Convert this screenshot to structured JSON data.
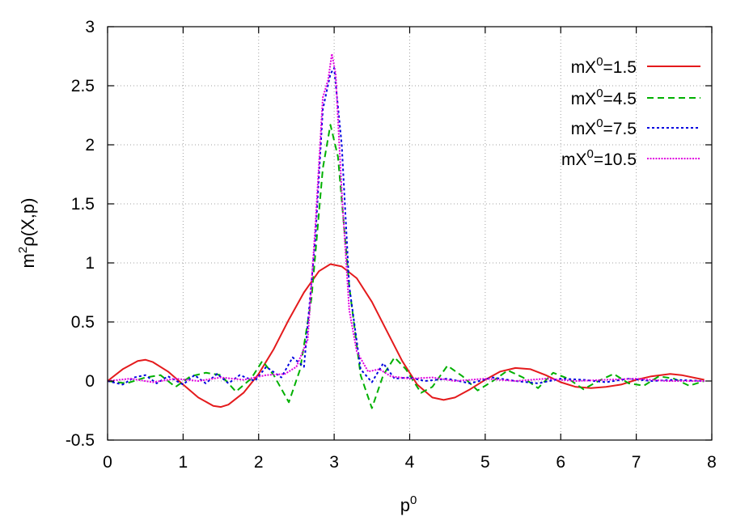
{
  "chart_data": {
    "type": "line",
    "xlabel": "p",
    "xlabel_sup": "0",
    "ylabel_pre": "m",
    "ylabel_sup": "2",
    "ylabel_post": "ρ(X,p)",
    "xlim": [
      0,
      8
    ],
    "ylim": [
      -0.5,
      3
    ],
    "xticks": [
      "0",
      "1",
      "2",
      "3",
      "4",
      "5",
      "6",
      "7",
      "8"
    ],
    "yticks": [
      "-0.5",
      "0",
      "0.5",
      "1",
      "1.5",
      "2",
      "2.5",
      "3"
    ],
    "grid": true,
    "legend_position": "top-right",
    "series": [
      {
        "name": "mX0=1.5",
        "label_pre": "mX",
        "label_sup": "0",
        "label_post": "=1.5",
        "color": "#e41a1c",
        "dash": "",
        "x": [
          0,
          0.2,
          0.4,
          0.5,
          0.6,
          0.8,
          1.0,
          1.2,
          1.4,
          1.5,
          1.6,
          1.8,
          2.0,
          2.2,
          2.4,
          2.6,
          2.8,
          2.95,
          3.1,
          3.3,
          3.5,
          3.7,
          3.9,
          4.1,
          4.3,
          4.45,
          4.6,
          4.8,
          5.0,
          5.2,
          5.4,
          5.6,
          5.8,
          6.0,
          6.2,
          6.4,
          6.6,
          6.8,
          7.0,
          7.2,
          7.45,
          7.6,
          7.9
        ],
        "y": [
          0,
          0.1,
          0.17,
          0.18,
          0.16,
          0.08,
          -0.03,
          -0.14,
          -0.21,
          -0.22,
          -0.2,
          -0.1,
          0.06,
          0.27,
          0.52,
          0.75,
          0.93,
          0.99,
          0.97,
          0.87,
          0.67,
          0.42,
          0.17,
          -0.03,
          -0.14,
          -0.16,
          -0.14,
          -0.07,
          0.01,
          0.08,
          0.11,
          0.1,
          0.05,
          -0.01,
          -0.05,
          -0.06,
          -0.05,
          -0.03,
          0.01,
          0.04,
          0.06,
          0.05,
          0.01
        ]
      },
      {
        "name": "mX0=4.5",
        "label_pre": "mX",
        "label_sup": "0",
        "label_post": "=4.5",
        "color": "#00b000",
        "dash": "8,5",
        "x": [
          0,
          0.25,
          0.5,
          0.7,
          0.9,
          1.1,
          1.3,
          1.5,
          1.7,
          1.9,
          2.05,
          2.2,
          2.4,
          2.55,
          2.7,
          2.85,
          2.95,
          3.05,
          3.2,
          3.35,
          3.5,
          3.65,
          3.8,
          3.95,
          4.15,
          4.3,
          4.5,
          4.7,
          4.9,
          5.1,
          5.3,
          5.5,
          5.7,
          5.9,
          6.1,
          6.3,
          6.5,
          6.7,
          6.9,
          7.1,
          7.3,
          7.5,
          7.7,
          7.9
        ],
        "y": [
          0,
          -0.02,
          0.03,
          0.05,
          -0.05,
          0.04,
          0.07,
          0.05,
          -0.09,
          0.02,
          0.17,
          0.05,
          -0.18,
          0.1,
          0.7,
          1.8,
          2.17,
          1.9,
          0.8,
          0.05,
          -0.23,
          0.05,
          0.2,
          0.1,
          -0.1,
          -0.05,
          0.13,
          0.04,
          -0.08,
          0.0,
          0.09,
          0.03,
          -0.06,
          0.07,
          0.02,
          -0.07,
          0.0,
          0.06,
          -0.02,
          -0.04,
          0.04,
          0.02,
          -0.04,
          0.0
        ]
      },
      {
        "name": "mX0=7.5",
        "label_pre": "mX",
        "label_sup": "0",
        "label_post": "=7.5",
        "color": "#0000e0",
        "dash": "3,3",
        "x": [
          0,
          0.2,
          0.35,
          0.5,
          0.65,
          0.8,
          1.0,
          1.15,
          1.3,
          1.45,
          1.6,
          1.75,
          1.95,
          2.1,
          2.3,
          2.45,
          2.6,
          2.75,
          2.85,
          2.95,
          3.0,
          3.1,
          3.2,
          3.35,
          3.5,
          3.65,
          3.8,
          4.0,
          4.2,
          4.5,
          4.8,
          5.1,
          5.4,
          5.7,
          6.0,
          6.3,
          6.6,
          6.9,
          7.2,
          7.5,
          7.9
        ],
        "y": [
          0,
          -0.03,
          0.03,
          0.05,
          -0.02,
          0.04,
          -0.03,
          0.05,
          -0.02,
          0.06,
          -0.02,
          0.05,
          0.0,
          0.12,
          0.03,
          0.2,
          0.12,
          1.2,
          2.3,
          2.6,
          2.65,
          2.0,
          0.8,
          0.1,
          -0.01,
          0.15,
          0.02,
          0.03,
          0.0,
          0.02,
          -0.02,
          0.03,
          0.0,
          -0.02,
          0.02,
          0.01,
          -0.01,
          0.02,
          0.0,
          0.01,
          0.0
        ]
      },
      {
        "name": "mX0=10.5",
        "label_pre": "mX",
        "label_sup": "0",
        "label_post": "=10.5",
        "color": "#e000e0",
        "dash": "2,1.5",
        "x": [
          0,
          0.3,
          0.6,
          0.9,
          1.2,
          1.5,
          1.8,
          2.1,
          2.35,
          2.5,
          2.65,
          2.75,
          2.85,
          2.92,
          2.97,
          3.02,
          3.1,
          3.2,
          3.3,
          3.45,
          3.6,
          3.75,
          4.0,
          4.3,
          4.6,
          5.0,
          5.4,
          5.8,
          6.2,
          6.6,
          7.0,
          7.4,
          7.9
        ],
        "y": [
          0,
          0.02,
          -0.01,
          0.02,
          0.0,
          0.03,
          0.01,
          0.05,
          0.06,
          0.12,
          0.35,
          1.3,
          2.4,
          2.55,
          2.77,
          2.6,
          1.6,
          0.6,
          0.25,
          0.08,
          0.1,
          0.04,
          0.02,
          0.03,
          0.0,
          0.02,
          0.0,
          0.02,
          0.0,
          0.01,
          0.02,
          0.0,
          0.0
        ]
      }
    ]
  }
}
